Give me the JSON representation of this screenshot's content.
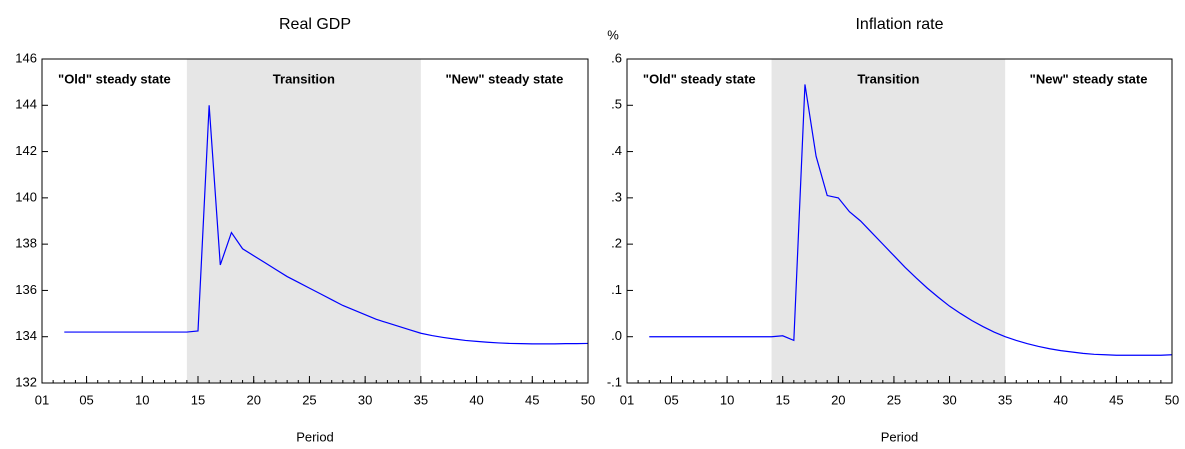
{
  "chart_data": [
    {
      "type": "line",
      "title": "Real GDP",
      "x_label": "Period",
      "color": "#0000ff",
      "x": [
        3,
        4,
        5,
        6,
        7,
        8,
        9,
        10,
        11,
        12,
        13,
        14,
        15,
        16,
        17,
        18,
        19,
        20,
        21,
        22,
        23,
        24,
        25,
        26,
        27,
        28,
        29,
        30,
        31,
        32,
        33,
        34,
        35,
        36,
        37,
        38,
        39,
        40,
        41,
        42,
        43,
        44,
        45,
        46,
        47,
        48,
        49,
        50
      ],
      "values": [
        134.2,
        134.2,
        134.2,
        134.2,
        134.2,
        134.2,
        134.2,
        134.2,
        134.2,
        134.2,
        134.2,
        134.2,
        134.25,
        144.0,
        137.1,
        138.5,
        137.8,
        137.5,
        137.2,
        136.9,
        136.6,
        136.35,
        136.1,
        135.85,
        135.6,
        135.35,
        135.15,
        134.95,
        134.75,
        134.6,
        134.45,
        134.3,
        134.15,
        134.05,
        133.97,
        133.9,
        133.84,
        133.8,
        133.76,
        133.73,
        133.71,
        133.7,
        133.69,
        133.69,
        133.69,
        133.7,
        133.7,
        133.71
      ],
      "xlim": [
        1,
        50
      ],
      "xticks": [
        {
          "value": 1,
          "label": "01"
        },
        {
          "value": 5,
          "label": "05"
        },
        10,
        15,
        20,
        25,
        30,
        35,
        40,
        45,
        50
      ],
      "ylim": [
        132,
        146
      ],
      "yticks": [
        132,
        134,
        136,
        138,
        140,
        142,
        144,
        146
      ],
      "regions": [
        {
          "label": "\"Old\" steady state"
        },
        {
          "label": "Transition",
          "from": 14,
          "to": 35
        },
        {
          "label": "\"New\" steady state"
        }
      ]
    },
    {
      "type": "line",
      "title": "Inflation rate",
      "y_unit": "%",
      "x_label": "Period",
      "color": "#0000ff",
      "x": [
        3,
        4,
        5,
        6,
        7,
        8,
        9,
        10,
        11,
        12,
        13,
        14,
        15,
        16,
        17,
        18,
        19,
        20,
        21,
        22,
        23,
        24,
        25,
        26,
        27,
        28,
        29,
        30,
        31,
        32,
        33,
        34,
        35,
        36,
        37,
        38,
        39,
        40,
        41,
        42,
        43,
        44,
        45,
        46,
        47,
        48,
        49,
        50
      ],
      "values": [
        0,
        0,
        0,
        0,
        0,
        0,
        0,
        0,
        0,
        0,
        0,
        0,
        0.002,
        -0.008,
        0.545,
        0.39,
        0.305,
        0.3,
        0.27,
        0.25,
        0.225,
        0.2,
        0.175,
        0.15,
        0.127,
        0.105,
        0.085,
        0.066,
        0.05,
        0.035,
        0.022,
        0.01,
        0.0,
        -0.008,
        -0.015,
        -0.021,
        -0.026,
        -0.03,
        -0.033,
        -0.036,
        -0.038,
        -0.039,
        -0.04,
        -0.04,
        -0.04,
        -0.04,
        -0.04,
        -0.039
      ],
      "xlim": [
        1,
        50
      ],
      "xticks": [
        {
          "value": 1,
          "label": "01"
        },
        {
          "value": 5,
          "label": "05"
        },
        10,
        15,
        20,
        25,
        30,
        35,
        40,
        45,
        50
      ],
      "ylim": [
        -0.1,
        0.6
      ],
      "yticks": [
        {
          "value": -0.1,
          "label": "-.1"
        },
        {
          "value": 0,
          "label": ".0"
        },
        {
          "value": 0.1,
          "label": ".1"
        },
        {
          "value": 0.2,
          "label": ".2"
        },
        {
          "value": 0.3,
          "label": ".3"
        },
        {
          "value": 0.4,
          "label": ".4"
        },
        {
          "value": 0.5,
          "label": ".5"
        },
        {
          "value": 0.6,
          "label": ".6"
        }
      ],
      "regions": [
        {
          "label": "\"Old\" steady state"
        },
        {
          "label": "Transition",
          "from": 14,
          "to": 35
        },
        {
          "label": "\"New\" steady state"
        }
      ]
    }
  ]
}
